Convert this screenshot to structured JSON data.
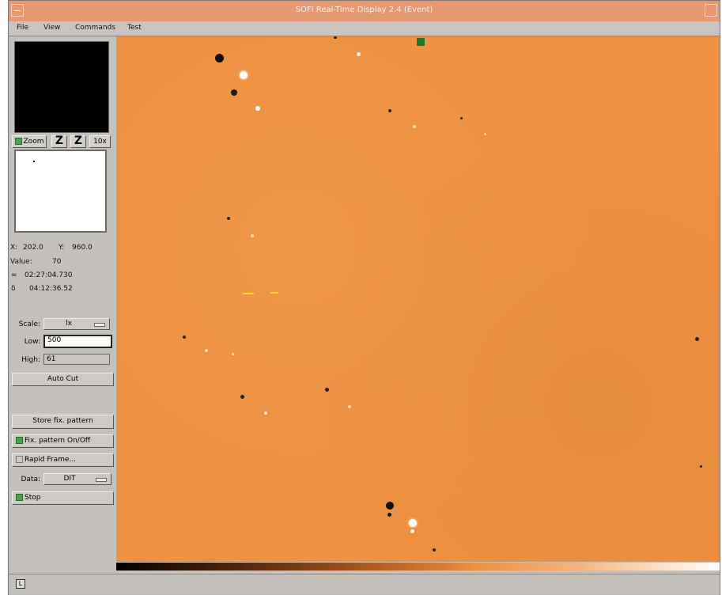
{
  "window": {
    "title": "SOFI Real-Time Display 2.4 (Event)"
  },
  "menu": [
    "File",
    "View",
    "Commands",
    "Test"
  ],
  "zoom": {
    "zoom_label": "Zoom",
    "zoom_out_label": "Z",
    "zoom_in_label": "Z",
    "factor_label": "10x"
  },
  "cursor": {
    "x_label": "X:",
    "x_value": "202.0",
    "y_label": "Y:",
    "y_value": "960.0",
    "value_label": "Value:",
    "value": "70",
    "ra_label": "=",
    "ra": "02:27:04.730",
    "dec_label": "δ",
    "dec": "04:12:36.52"
  },
  "scale": {
    "label": "Scale:",
    "value": "lx"
  },
  "low": {
    "label": "Low:",
    "value": "500"
  },
  "high": {
    "label": "High:",
    "value": "61"
  },
  "buttons": {
    "auto_cut": "Auto Cut",
    "store_pattern": "Store fix. pattern",
    "fix_pattern": "Fix. pattern On/Off",
    "rapid_frame": "Rapid Frame..."
  },
  "data": {
    "label": "Data:",
    "value": "DIT"
  },
  "stop": "Stop",
  "statusbar": {
    "icon_label": "L"
  },
  "colors": {
    "title_bar": "#e79870",
    "image_bg": "#ee9140",
    "indicator_on": "#3fa84a"
  },
  "icons": [
    "window-menu-icon",
    "window-maximize-icon",
    "status-icon"
  ]
}
